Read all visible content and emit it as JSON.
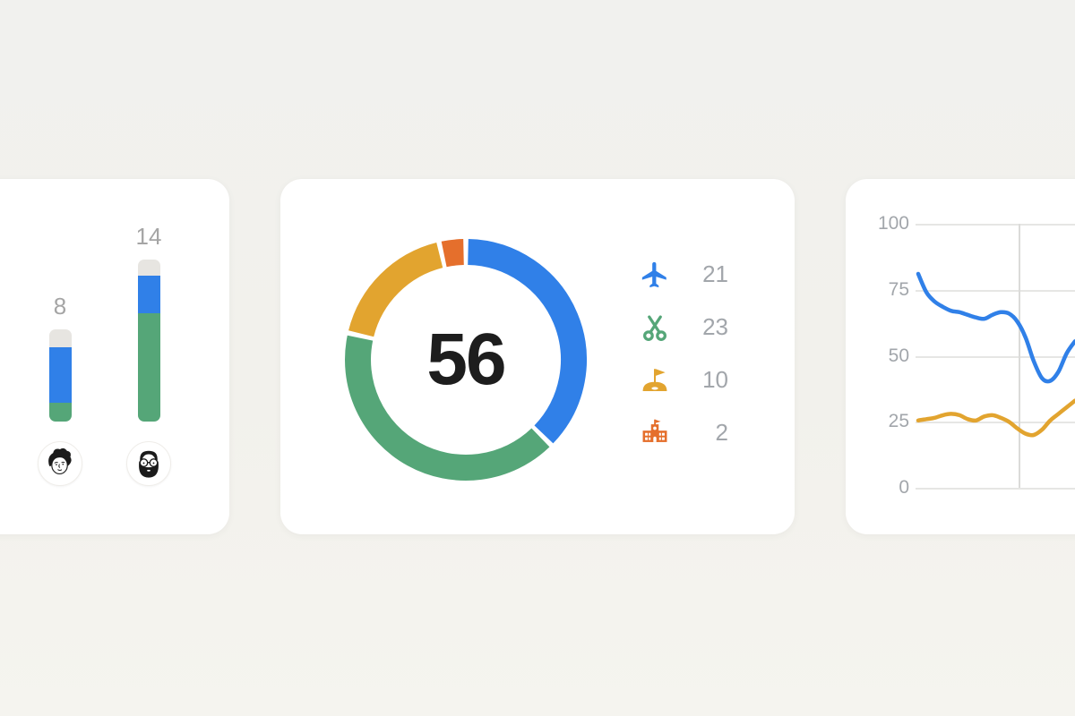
{
  "page": {
    "background_color": "#F2F1EC",
    "card_color": "#FFFFFF"
  },
  "chart_data": [
    {
      "type": "bar",
      "variant": "stacked-vertical-rounded",
      "categories": [
        "curly-hair-person",
        "beard-glasses-person"
      ],
      "bar_labels": [
        "8",
        "14"
      ],
      "bar_totals": [
        8,
        14
      ],
      "ylim": [
        0,
        14
      ],
      "series": [
        {
          "name": "top-gray-segment",
          "color": "#E7E5E1",
          "values": [
            1.6,
            1.4
          ]
        },
        {
          "name": "middle-blue-segment",
          "color": "#3080E8",
          "values": [
            4.8,
            3.2
          ]
        },
        {
          "name": "bottom-green-segment",
          "color": "#55A678",
          "values": [
            1.6,
            9.4
          ]
        }
      ]
    },
    {
      "type": "pie",
      "variant": "donut",
      "center_value": "56",
      "total": 56,
      "segments": [
        {
          "name": "flights",
          "icon": "airplane-icon",
          "value": 21,
          "color": "#3080E8"
        },
        {
          "name": "scissors",
          "icon": "scissors-icon",
          "value": 23,
          "color": "#55A678"
        },
        {
          "name": "golf",
          "icon": "golf-flag-icon",
          "value": 10,
          "color": "#E2A42F"
        },
        {
          "name": "school",
          "icon": "school-icon",
          "value": 2,
          "color": "#E56F2C"
        }
      ]
    },
    {
      "type": "line",
      "grid": true,
      "yticks": [
        "100",
        "75",
        "50",
        "25",
        "0"
      ],
      "ylim": [
        0,
        100
      ],
      "series": [
        {
          "name": "blue-line",
          "color": "#3080E8",
          "values": [
            81,
            74,
            70.5,
            68.5,
            67,
            66.5,
            65.5,
            64.5,
            64,
            65.5,
            66.5,
            66,
            63,
            57,
            48,
            41.5,
            40.5,
            44,
            51,
            55.5
          ]
        },
        {
          "name": "gold-line",
          "color": "#E2A42F",
          "values": [
            25.5,
            26,
            26.5,
            27.5,
            28,
            27.5,
            26,
            25.5,
            27,
            27.5,
            26.5,
            25,
            22.5,
            20.5,
            20,
            22,
            25.5,
            28,
            30.5,
            33
          ]
        }
      ]
    }
  ]
}
